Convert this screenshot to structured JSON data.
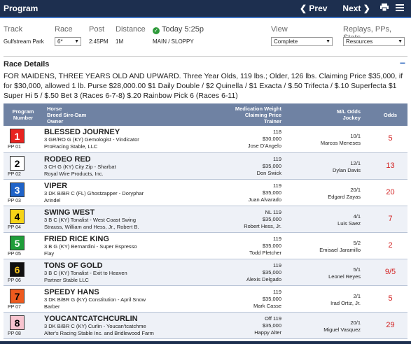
{
  "header": {
    "title": "Program",
    "prev_label": "❮ Prev",
    "next_label": "Next ❯",
    "print_icon": "printer-icon",
    "menu_icon": "hamburger-icon"
  },
  "controls": {
    "track_label": "Track",
    "track_value": "Gulfstream Park",
    "race_label": "Race",
    "race_value": "6*",
    "post_label": "Post",
    "post_value": "2:45PM",
    "distance_label": "Distance",
    "distance_value": "1M",
    "status_label": "Today 5:25p",
    "surface_value": "MAIN / SLOPPY",
    "view_label": "View",
    "view_value": "Complete",
    "replays_label": "Replays, PPs, Stats",
    "replays_value": "Resources"
  },
  "race_details": {
    "title": "Race Details",
    "text": "FOR MAIDENS, THREE YEARS OLD AND UPWARD. Three Year Olds, 119 lbs.; Older, 126 lbs. Claiming Price $35,000, if for $30,000, allowed 1 lb. Purse $28,000.00 $1 Daily Double / $2 Quinella / $1 Exacta / $.50 Trifecta / $.10 Superfecta $1 Super Hi 5 / $.50 Bet 3 (Races 6-7-8) $.20 Rainbow Pick 6 (Races 6-11)"
  },
  "table": {
    "col_program": "Program Number",
    "col_horse": "Horse\nBreed Sire-Dam\nOwner",
    "col_med": "Medication Weight\nClaiming Price\nTrainer",
    "col_ml": "M/L Odds\nJockey",
    "col_odds": "Odds",
    "rows": [
      {
        "num": "1",
        "pp": "PP 01",
        "bg": "#e8231f",
        "fg": "#ffffff",
        "name": "BLESSED JOURNEY",
        "breed": "3 GR/RO G (KY) Gemologist - Vindicator",
        "owner": "ProRacing Stable, LLC",
        "med": "118",
        "price": "$30,000",
        "trainer": "Jose D'Angelo",
        "ml": "10/1",
        "jockey": "Marcos Meneses",
        "odds": "5"
      },
      {
        "num": "2",
        "pp": "PP 02",
        "bg": "#ffffff",
        "fg": "#000000",
        "name": "RODEO RED",
        "breed": "3 CH G (KY) City Zip - Sharbat",
        "owner": "Royal Wire Products, Inc.",
        "med": "119",
        "price": "$35,000",
        "trainer": "Don Swick",
        "ml": "12/1",
        "jockey": "Dylan Davis",
        "odds": "13"
      },
      {
        "num": "3",
        "pp": "PP 03",
        "bg": "#1f63c8",
        "fg": "#ffffff",
        "name": "VIPER",
        "breed": "3 DK B/BR C (FL) Ghostzapper - Doryphar",
        "owner": "Arindel",
        "med": "119",
        "price": "$35,000",
        "trainer": "Juan Alvarado",
        "ml": "20/1",
        "jockey": "Edgard Zayas",
        "odds": "20"
      },
      {
        "num": "4",
        "pp": "PP 04",
        "bg": "#f6d417",
        "fg": "#000000",
        "name": "SWING WEST",
        "breed": "3 B C (KY) Tonalist - West Coast Swing",
        "owner": "Strauss, William and Hess, Jr., Robert B.",
        "med": "NL 119",
        "price": "$35,000",
        "trainer": "Robert Hess, Jr.",
        "ml": "4/1",
        "jockey": "Luis Saez",
        "odds": "7"
      },
      {
        "num": "5",
        "pp": "PP 05",
        "bg": "#1f9e3a",
        "fg": "#ffffff",
        "name": "FRIED RICE KING",
        "breed": "3 B G (KY) Bernardini - Super Espresso",
        "owner": "Flay",
        "med": "119",
        "price": "$35,000",
        "trainer": "Todd Pletcher",
        "ml": "5/2",
        "jockey": "Emisael Jaramillo",
        "odds": "2"
      },
      {
        "num": "6",
        "pp": "PP 06",
        "bg": "#111111",
        "fg": "#f6c31a",
        "name": "TONS OF GOLD",
        "breed": "3 B C (KY) Tonalist - Exit to Heaven",
        "owner": "Partner Stable LLC",
        "med": "119",
        "price": "$35,000",
        "trainer": "Alexis Delgado",
        "ml": "5/1",
        "jockey": "Leonel Reyes",
        "odds": "9/5"
      },
      {
        "num": "7",
        "pp": "PP 07",
        "bg": "#ee5a1e",
        "fg": "#000000",
        "name": "SPEEDY HANS",
        "breed": "3 DK B/BR G (KY) Constitution - April Snow",
        "owner": "Barber",
        "med": "119",
        "price": "$35,000",
        "trainer": "Mark Casse",
        "ml": "2/1",
        "jockey": "Irad Ortiz, Jr.",
        "odds": "5"
      },
      {
        "num": "8",
        "pp": "PP 08",
        "bg": "#f7c4cf",
        "fg": "#000000",
        "name": "YOUCANTCATCHCURLIN",
        "breed": "3 DK B/BR C (KY) Curlin - Youcan'tcatchme",
        "owner": "Alter's Racing Stable Inc. and Bridlewood Farm",
        "med": "Off 119",
        "price": "$35,000",
        "trainer": "Happy Alter",
        "ml": "20/1",
        "jockey": "Miguel Vasquez",
        "odds": "29"
      }
    ]
  }
}
